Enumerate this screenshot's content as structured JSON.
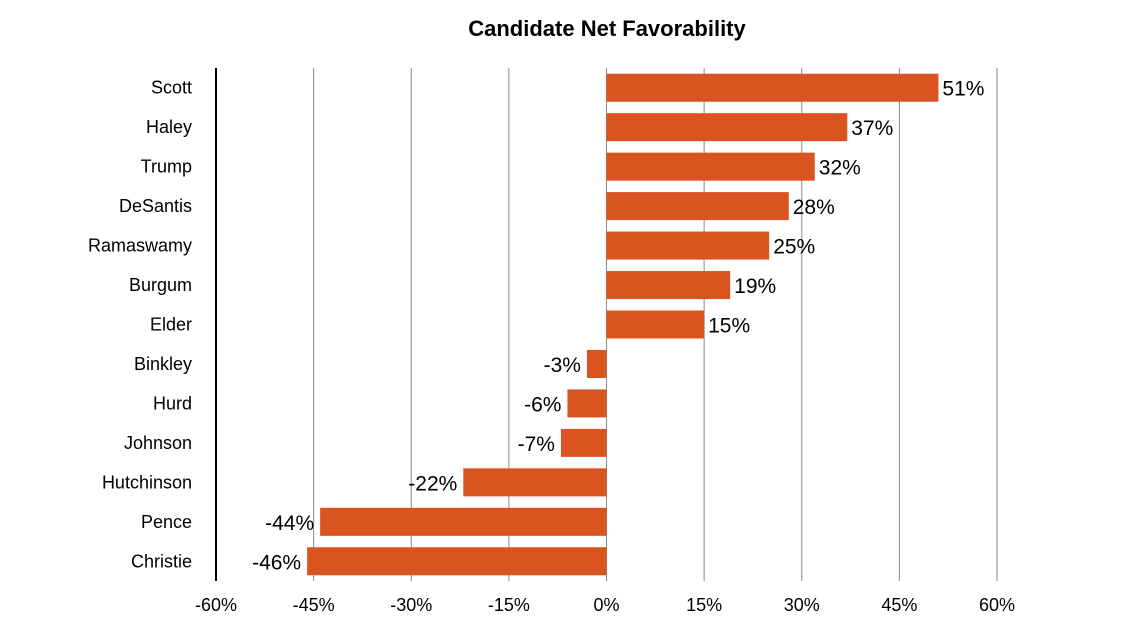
{
  "chart_data": {
    "type": "bar",
    "orientation": "horizontal",
    "title": "Candidate Net Favorability",
    "xlabel": "",
    "ylabel": "",
    "categories": [
      "Scott",
      "Haley",
      "Trump",
      "DeSantis",
      "Ramaswamy",
      "Burgum",
      "Elder",
      "Binkley",
      "Hurd",
      "Johnson",
      "Hutchinson",
      "Pence",
      "Christie"
    ],
    "values": [
      51,
      37,
      32,
      28,
      25,
      19,
      15,
      -3,
      -6,
      -7,
      -22,
      -44,
      -46
    ],
    "value_labels": [
      "51%",
      "37%",
      "32%",
      "28%",
      "25%",
      "19%",
      "15%",
      "-3%",
      "-6%",
      "-7%",
      "-22%",
      "-44%",
      "-46%"
    ],
    "xlim": [
      -60,
      60
    ],
    "xticks": [
      -60,
      -45,
      -30,
      -15,
      0,
      15,
      30,
      45,
      60
    ],
    "xtick_labels": [
      "-60%",
      "-45%",
      "-30%",
      "-15%",
      "0%",
      "15%",
      "30%",
      "45%",
      "60%"
    ],
    "grid": "vertical",
    "bar_color": "#d9541e"
  }
}
